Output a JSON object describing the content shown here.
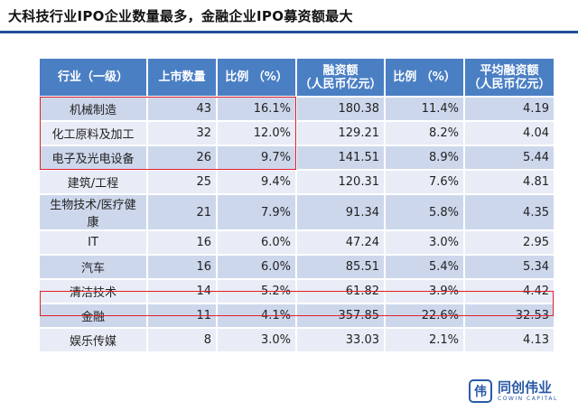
{
  "title": "大科技行业IPO企业数量最多，金融企业IPO募资额最大",
  "table": {
    "headers": [
      {
        "line1": "行业（一级）",
        "line2": ""
      },
      {
        "line1": "上市数量",
        "line2": ""
      },
      {
        "line1": "比例 （%）",
        "line2": ""
      },
      {
        "line1": "融资额",
        "line2": "（人民币亿元）"
      },
      {
        "line1": "比例 （%）",
        "line2": ""
      },
      {
        "line1": "平均融资额",
        "line2": "（人民币亿元）"
      }
    ],
    "rows": [
      {
        "industry": "机械制造",
        "count": "43",
        "count_pct": "16.1%",
        "financing": "180.38",
        "financing_pct": "11.4%",
        "avg": "4.19"
      },
      {
        "industry": "化工原料及加工",
        "count": "32",
        "count_pct": "12.0%",
        "financing": "129.21",
        "financing_pct": "8.2%",
        "avg": "4.04"
      },
      {
        "industry": "电子及光电设备",
        "count": "26",
        "count_pct": "9.7%",
        "financing": "141.51",
        "financing_pct": "8.9%",
        "avg": "5.44"
      },
      {
        "industry": "建筑/工程",
        "count": "25",
        "count_pct": "9.4%",
        "financing": "120.31",
        "financing_pct": "7.6%",
        "avg": "4.81"
      },
      {
        "industry": "生物技术/医疗健康",
        "count": "21",
        "count_pct": "7.9%",
        "financing": "91.34",
        "financing_pct": "5.8%",
        "avg": "4.35"
      },
      {
        "industry": "IT",
        "count": "16",
        "count_pct": "6.0%",
        "financing": "47.24",
        "financing_pct": "3.0%",
        "avg": "2.95"
      },
      {
        "industry": "汽车",
        "count": "16",
        "count_pct": "6.0%",
        "financing": "85.51",
        "financing_pct": "5.4%",
        "avg": "5.34"
      },
      {
        "industry": "清洁技术",
        "count": "14",
        "count_pct": "5.2%",
        "financing": "61.82",
        "financing_pct": "3.9%",
        "avg": "4.42"
      },
      {
        "industry": "金融",
        "count": "11",
        "count_pct": "4.1%",
        "financing": "357.85",
        "financing_pct": "22.6%",
        "avg": "32.53"
      },
      {
        "industry": "娱乐传媒",
        "count": "8",
        "count_pct": "3.0%",
        "financing": "33.03",
        "financing_pct": "2.1%",
        "avg": "4.13"
      }
    ]
  },
  "logo": {
    "cn": "同创伟业",
    "en": "COWIN CAPITAL",
    "mark": "伟"
  },
  "colors": {
    "header_bg": "#4a7fc4",
    "row_dark": "#cdd7ec",
    "row_light": "#e8ecf6",
    "highlight": "#e0202a",
    "rule": "#1f4e9a"
  }
}
